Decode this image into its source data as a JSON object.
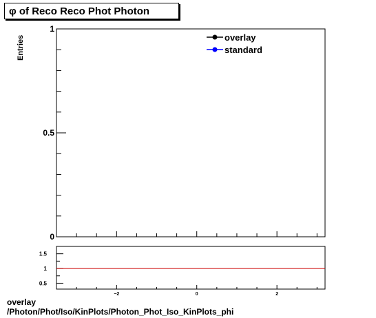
{
  "title": "φ of Reco Reco Phot Photon",
  "footer": {
    "line1": "overlay",
    "line2": "/Photon/Phot/Iso/KinPlots/Photon_Phot_Iso_KinPlots_phi"
  },
  "colors": {
    "overlay": "#000000",
    "standard": "#0000ff",
    "ratio_line": "#cc0000"
  },
  "chart_data": [
    {
      "type": "line",
      "title": "φ of Reco Reco Phot Photon",
      "xlabel": "",
      "ylabel": "Entries",
      "xlim": [
        -3.5,
        3.2
      ],
      "ylim": [
        0,
        1
      ],
      "y_ticks": [
        0,
        0.5,
        1
      ],
      "y_tick_labels": [
        "0",
        "0.5",
        "1"
      ],
      "series": [
        {
          "name": "overlay",
          "values": []
        },
        {
          "name": "standard",
          "values": []
        }
      ],
      "legend": "top-right",
      "grid": false
    },
    {
      "type": "line",
      "title": "",
      "xlabel": "",
      "ylabel": "",
      "xlim": [
        -3.5,
        3.2
      ],
      "ylim": [
        0.3,
        1.75
      ],
      "x_ticks": [
        -2,
        0,
        2
      ],
      "x_tick_labels": [
        "−2",
        "0",
        "2"
      ],
      "y_ticks": [
        0.5,
        1,
        1.5
      ],
      "y_tick_labels": [
        "0.5",
        "1",
        "1.5"
      ],
      "reference_line": 1,
      "grid": false
    }
  ]
}
